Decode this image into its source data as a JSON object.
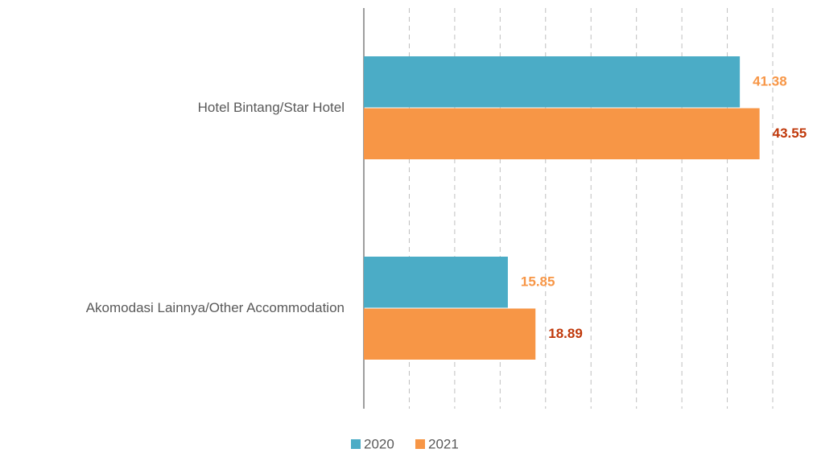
{
  "chart_data": {
    "type": "hbar",
    "categories": [
      "Hotel Bintang/Star Hotel",
      "Akomodasi Lainnya/Other Accommodation"
    ],
    "series": [
      {
        "name": "2020",
        "color": "#4bacc6",
        "label_color": "#f79646",
        "values": [
          41.38,
          15.85
        ]
      },
      {
        "name": "2021",
        "color": "#f79646",
        "label_color": "#c0390b",
        "values": [
          43.55,
          18.89
        ]
      }
    ],
    "xlim": [
      0,
      45
    ],
    "xticks": [
      0,
      5,
      10,
      15,
      20,
      25,
      30,
      35,
      40,
      45
    ],
    "grid": true,
    "legend": "bottom"
  }
}
